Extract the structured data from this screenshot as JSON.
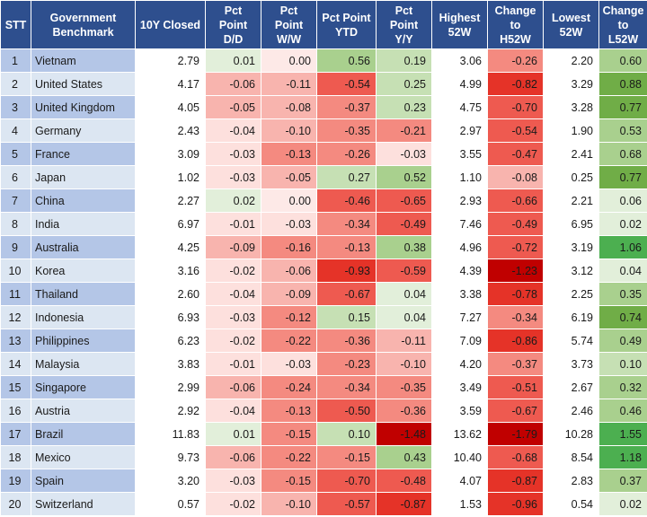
{
  "headers": [
    "STT",
    "Government\nBenchmark",
    "10Y Closed",
    "Pct\nPoint\nD/D",
    "Pct\nPoint\nW/W",
    "Pct Point\nYTD",
    "Pct\nPoint\nY/Y",
    "Highest\n52W",
    "Change\nto\nH52W",
    "Lowest\n52W",
    "Change\nto\nL52W"
  ],
  "rows": [
    [
      "1",
      "Vietnam",
      "2.79",
      "0.01",
      "0.00",
      "0.56",
      "0.19",
      "3.06",
      "-0.26",
      "2.20",
      "0.60"
    ],
    [
      "2",
      "United States",
      "4.17",
      "-0.06",
      "-0.11",
      "-0.54",
      "0.25",
      "4.99",
      "-0.82",
      "3.29",
      "0.88"
    ],
    [
      "3",
      "United Kingdom",
      "4.05",
      "-0.05",
      "-0.08",
      "-0.37",
      "0.23",
      "4.75",
      "-0.70",
      "3.28",
      "0.77"
    ],
    [
      "4",
      "Germany",
      "2.43",
      "-0.04",
      "-0.10",
      "-0.35",
      "-0.21",
      "2.97",
      "-0.54",
      "1.90",
      "0.53"
    ],
    [
      "5",
      "France",
      "3.09",
      "-0.03",
      "-0.13",
      "-0.26",
      "-0.03",
      "3.55",
      "-0.47",
      "2.41",
      "0.68"
    ],
    [
      "6",
      "Japan",
      "1.02",
      "-0.03",
      "-0.05",
      "0.27",
      "0.52",
      "1.10",
      "-0.08",
      "0.25",
      "0.77"
    ],
    [
      "7",
      "China",
      "2.27",
      "0.02",
      "0.00",
      "-0.46",
      "-0.65",
      "2.93",
      "-0.66",
      "2.21",
      "0.06"
    ],
    [
      "8",
      "India",
      "6.97",
      "-0.01",
      "-0.03",
      "-0.34",
      "-0.49",
      "7.46",
      "-0.49",
      "6.95",
      "0.02"
    ],
    [
      "9",
      "Australia",
      "4.25",
      "-0.09",
      "-0.16",
      "-0.13",
      "0.38",
      "4.96",
      "-0.72",
      "3.19",
      "1.06"
    ],
    [
      "10",
      "Korea",
      "3.16",
      "-0.02",
      "-0.06",
      "-0.93",
      "-0.59",
      "4.39",
      "-1.23",
      "3.12",
      "0.04"
    ],
    [
      "11",
      "Thailand",
      "2.60",
      "-0.04",
      "-0.09",
      "-0.67",
      "0.04",
      "3.38",
      "-0.78",
      "2.25",
      "0.35"
    ],
    [
      "12",
      "Indonesia",
      "6.93",
      "-0.03",
      "-0.12",
      "0.15",
      "0.04",
      "7.27",
      "-0.34",
      "6.19",
      "0.74"
    ],
    [
      "13",
      "Philippines",
      "6.23",
      "-0.02",
      "-0.22",
      "-0.36",
      "-0.11",
      "7.09",
      "-0.86",
      "5.74",
      "0.49"
    ],
    [
      "14",
      "Malaysia",
      "3.83",
      "-0.01",
      "-0.03",
      "-0.23",
      "-0.10",
      "4.20",
      "-0.37",
      "3.73",
      "0.10"
    ],
    [
      "15",
      "Singapore",
      "2.99",
      "-0.06",
      "-0.24",
      "-0.34",
      "-0.35",
      "3.49",
      "-0.51",
      "2.67",
      "0.32"
    ],
    [
      "16",
      "Austria",
      "2.92",
      "-0.04",
      "-0.13",
      "-0.50",
      "-0.36",
      "3.59",
      "-0.67",
      "2.46",
      "0.46"
    ],
    [
      "17",
      "Brazil",
      "11.83",
      "0.01",
      "-0.15",
      "0.10",
      "-1.48",
      "13.62",
      "-1.79",
      "10.28",
      "1.55"
    ],
    [
      "18",
      "Mexico",
      "9.73",
      "-0.06",
      "-0.22",
      "-0.15",
      "0.43",
      "10.40",
      "-0.68",
      "8.54",
      "1.18"
    ],
    [
      "19",
      "Spain",
      "3.20",
      "-0.03",
      "-0.15",
      "-0.70",
      "-0.48",
      "4.07",
      "-0.87",
      "2.83",
      "0.37"
    ],
    [
      "20",
      "Switzerland",
      "0.57",
      "-0.02",
      "-0.10",
      "-0.57",
      "-0.87",
      "1.53",
      "-0.96",
      "0.54",
      "0.02"
    ]
  ],
  "colors": {
    "header_bg": "#2e4f8e",
    "row_odd": "#b4c6e7",
    "row_even": "#dce6f2",
    "neutral_cell": "#fde9e7",
    "positive_scale": [
      "#e2efda",
      "#c6e0b4",
      "#a9d08e",
      "#70ad47",
      "#4caf50"
    ],
    "negative_scale": [
      "#fde0dd",
      "#f8b4ae",
      "#f48a80",
      "#ee5a50",
      "#e53328",
      "#c00000"
    ]
  }
}
